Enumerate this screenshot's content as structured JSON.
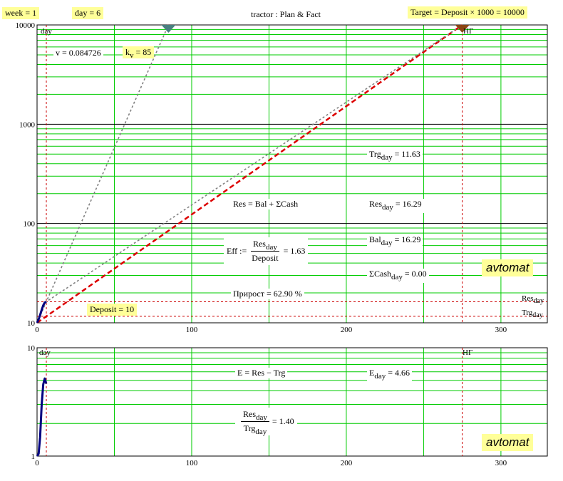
{
  "header": {
    "week_label": "week = 1",
    "day_label": "day = 6",
    "title": "tractor :   Plan & Fact",
    "target_label": "Target = Deposit × 1000 = 10000"
  },
  "annotations_top": {
    "day_marker": "day",
    "ng_marker": "НГ",
    "v_label": "v = 0.084726",
    "kv_main": "k",
    "kv_sub": "v",
    "kv_value": " = 85",
    "trg_main": "Trg",
    "trg_sub": "day",
    "trg_value": " = 11.63",
    "res_formula": "Res = Bal + ΣCash",
    "res_main": "Res",
    "res_sub": "day",
    "res_value": " = 16.29",
    "bal_main": "Bal",
    "bal_sub": "day",
    "bal_value": " = 16.29",
    "eff_lhs": "Eff  :=",
    "eff_num": "Res",
    "eff_num_sub": "day",
    "eff_den": "Deposit",
    "eff_value": "= 1.63",
    "cash_main": "ΣCash",
    "cash_sub": "day",
    "cash_value": " = 0.00",
    "growth_label": "Прирост = 62.90  %",
    "deposit_label": "Deposit = 10",
    "res_line_main": "Res",
    "res_line_sub": "day",
    "trg_line_main": "Trg",
    "trg_line_sub": "day",
    "avtomat": "avtomat"
  },
  "annotations_bottom": {
    "day_marker": "day",
    "ng_marker": "НГ",
    "e_formula": "E = Res − Trg",
    "e_main": "E",
    "e_sub": "day",
    "e_value": " = 4.66",
    "ratio_num": "Res",
    "ratio_num_sub": "day",
    "ratio_den": "Trg",
    "ratio_den_sub": "day",
    "ratio_value": "= 1.40",
    "avtomat": "avtomat"
  },
  "colors": {
    "grid": "#00cc00",
    "plan": "#dd0000",
    "fact": "#000080",
    "gray": "#808080",
    "marker": "#cc0000",
    "triangle": "#4a8080",
    "target_triangle": "#8b4513",
    "highlight": "#ffff99"
  },
  "chart_data": [
    {
      "type": "line",
      "y_scale": "log",
      "xlim": [
        0,
        330
      ],
      "ylim": [
        10,
        10000
      ],
      "x_ticks": [
        "0",
        "100",
        "200",
        "300"
      ],
      "y_ticks": [
        "10",
        "100",
        "1000",
        "10000"
      ],
      "grid": true,
      "series": [
        {
          "points": [
            [
              0,
              10
            ],
            [
              275,
              10000
            ]
          ]
        },
        {
          "points": [
            [
              0,
              10
            ],
            [
              6,
              16.3
            ],
            [
              275,
              10000
            ]
          ]
        },
        {
          "points": [
            [
              0,
              10
            ],
            [
              6,
              16.3
            ],
            [
              85,
              10000
            ]
          ]
        },
        {
          "points": [
            [
              0,
              10
            ],
            [
              1,
              10.8
            ],
            [
              2,
              12
            ],
            [
              3,
              13.5
            ],
            [
              4,
              15
            ],
            [
              5,
              16
            ],
            [
              6,
              16.29
            ]
          ]
        }
      ],
      "reference_lines": {
        "x_day": 6,
        "x_ng": 275,
        "y_res": 16.29,
        "y_trg": 11.63
      }
    },
    {
      "type": "line",
      "y_scale": "log",
      "xlim": [
        0,
        330
      ],
      "ylim": [
        1,
        10
      ],
      "x_ticks": [
        "0",
        "100",
        "200",
        "300"
      ],
      "y_ticks": [
        "1",
        "10"
      ],
      "grid": true,
      "series": [
        {
          "points": [
            [
              0,
              1
            ],
            [
              1,
              1.05
            ],
            [
              2,
              1.5
            ],
            [
              3,
              3
            ],
            [
              4,
              4.6
            ],
            [
              5,
              5.2
            ],
            [
              6,
              4.66
            ]
          ]
        }
      ],
      "reference_lines": {
        "x_day": 6,
        "x_ng": 275
      }
    }
  ]
}
